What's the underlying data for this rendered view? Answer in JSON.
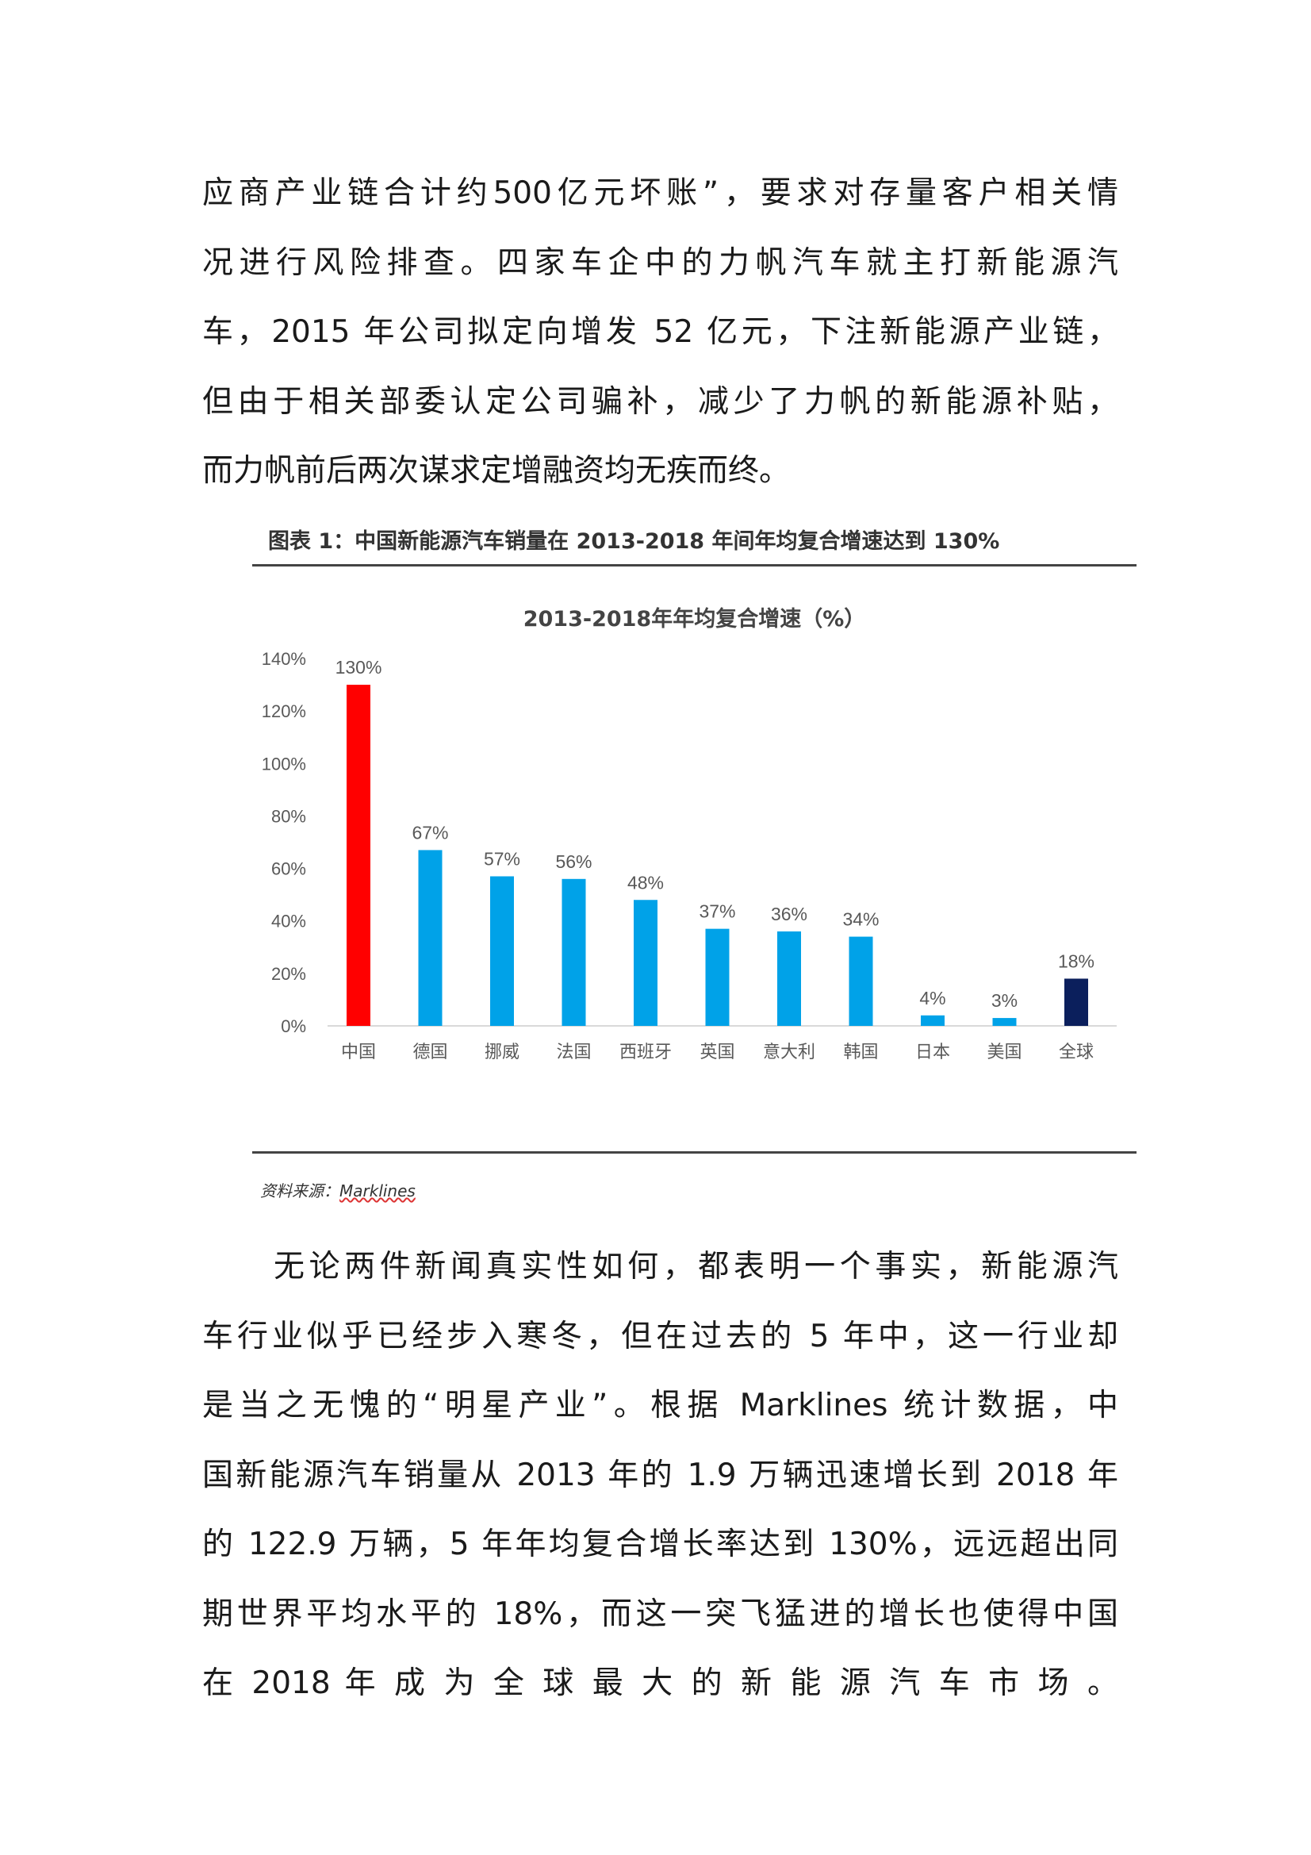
{
  "paragraph1": [
    "应商产业链合计约500亿元坏账”，要求对存量客户相关情",
    "况进行风险排查。四家车企中的力帆汽车就主打新能源汽",
    "车，2015 年公司拟定向增发 52 亿元，下注新能源产业链，",
    "但由于相关部委认定公司骗补，减少了力帆的新能源补贴，",
    "而力帆前后两次谋求定增融资均无疾而终。"
  ],
  "figure": {
    "caption": "图表 1：中国新能源汽车销量在 2013-2018 年间年均复合增速达到 130%",
    "source_label": "资料来源：",
    "source_name": "Marklines"
  },
  "chart_data": {
    "type": "bar",
    "title": "2013-2018年年均复合增速（%）",
    "categories": [
      "中国",
      "德国",
      "挪威",
      "法国",
      "西班牙",
      "英国",
      "意大利",
      "韩国",
      "日本",
      "美国",
      "全球"
    ],
    "values": [
      130,
      67,
      57,
      56,
      48,
      37,
      36,
      34,
      4,
      3,
      18
    ],
    "data_labels": [
      "130%",
      "67%",
      "57%",
      "56%",
      "48%",
      "37%",
      "36%",
      "34%",
      "4%",
      "3%",
      "18%"
    ],
    "ylim": [
      0,
      140
    ],
    "yticks": [
      "0%",
      "20%",
      "40%",
      "60%",
      "80%",
      "100%",
      "120%",
      "140%"
    ],
    "grid": false,
    "colors": {
      "china": "#ff0000",
      "countries": "#00a2e8",
      "global": "#0b1f5c"
    }
  },
  "paragraph2": [
    "无论两件新闻真实性如何，都表明一个事实，新能源汽",
    "车行业似乎已经步入寒冬，但在过去的 5 年中，这一行业却",
    "是当之无愧的“明星产业”。根据 Marklines 统计数据，中",
    "国新能源汽车销量从 2013 年的 1.9 万辆迅速增长到 2018 年",
    "的 122.9 万辆，5 年年均复合增长率达到 130%，远远超出同",
    "期世界平均水平的 18%，而这一突飞猛进的增长也使得中国",
    "在 2018 年 成 为 全 球 最 大 的 新 能 源 汽 车 市 场 。"
  ]
}
